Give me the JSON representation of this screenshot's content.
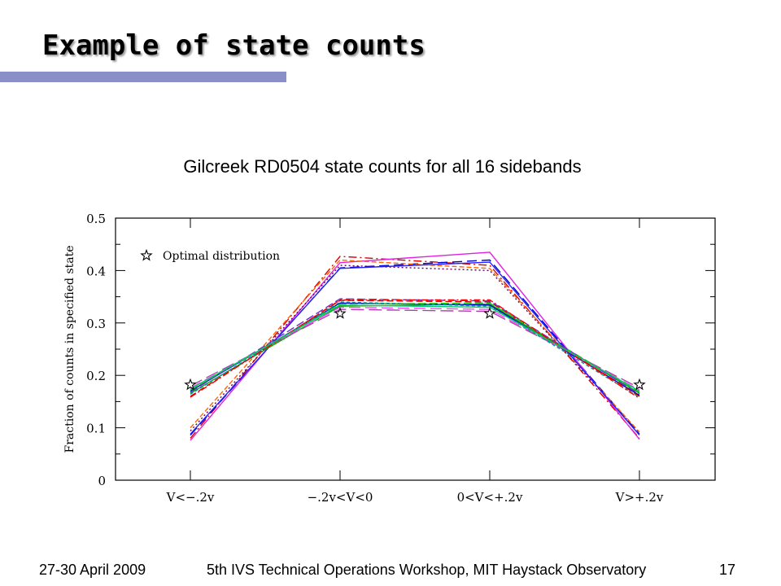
{
  "slide": {
    "title": "Example of state counts",
    "accent_color": "#8b8fc7"
  },
  "footer": {
    "date": "27-30 April 2009",
    "event": "5th IVS Technical Operations Workshop, MIT Haystack Observatory",
    "page_number": "17"
  },
  "chart_data": {
    "type": "line",
    "title": "Gilcreek RD0504 state counts for all 16 sidebands",
    "ylabel": "Fraction of counts in specified state",
    "xlabel": "",
    "categories": [
      "V<−.2v",
      "−.2v<V<0",
      "0<V<+.2v",
      "V>+.2v"
    ],
    "ylim": [
      0,
      0.5
    ],
    "yticks": [
      "0",
      "0.1",
      "0.2",
      "0.3",
      "0.4",
      "0.5"
    ],
    "legend": {
      "label": "Optimal distribution",
      "symbol": "star",
      "placement": "top-left"
    },
    "optimal": [
      0.182,
      0.318,
      0.318,
      0.182
    ],
    "series": [
      {
        "values": [
          0.08,
          0.427,
          0.41,
          0.08
        ],
        "color": "#dd0000",
        "dash": "10 4 2 4"
      },
      {
        "values": [
          0.086,
          0.405,
          0.42,
          0.088
        ],
        "color": "#0000cc",
        "dash": "12 6"
      },
      {
        "values": [
          0.076,
          0.415,
          0.435,
          0.078
        ],
        "color": "#e020e0",
        "dash": ""
      },
      {
        "values": [
          0.094,
          0.41,
          0.4,
          0.09
        ],
        "color": "#660066",
        "dash": "2 3"
      },
      {
        "values": [
          0.1,
          0.42,
          0.404,
          0.092
        ],
        "color": "#ff6600",
        "dash": "6 3"
      },
      {
        "values": [
          0.088,
          0.404,
          0.416,
          0.086
        ],
        "color": "#2222ff",
        "dash": ""
      },
      {
        "values": [
          0.166,
          0.332,
          0.336,
          0.166
        ],
        "color": "#00aa00",
        "dash": ""
      },
      {
        "values": [
          0.17,
          0.338,
          0.334,
          0.162
        ],
        "color": "#0000cc",
        "dash": ""
      },
      {
        "values": [
          0.16,
          0.343,
          0.34,
          0.16
        ],
        "color": "#cc0000",
        "dash": "8 4"
      },
      {
        "values": [
          0.176,
          0.33,
          0.326,
          0.172
        ],
        "color": "#ff44ff",
        "dash": "14 6"
      },
      {
        "values": [
          0.172,
          0.336,
          0.338,
          0.168
        ],
        "color": "#22cc22",
        "dash": "10 4"
      },
      {
        "values": [
          0.168,
          0.346,
          0.342,
          0.164
        ],
        "color": "#6633cc",
        "dash": "10 4"
      },
      {
        "values": [
          0.18,
          0.326,
          0.322,
          0.176
        ],
        "color": "#aa44aa",
        "dash": "16 6"
      },
      {
        "values": [
          0.164,
          0.34,
          0.332,
          0.158
        ],
        "color": "#009999",
        "dash": "4 3"
      },
      {
        "values": [
          0.158,
          0.344,
          0.344,
          0.156
        ],
        "color": "#ff0000",
        "dash": "8 3 2 3"
      },
      {
        "values": [
          0.174,
          0.334,
          0.33,
          0.17
        ],
        "color": "#00cc66",
        "dash": ""
      }
    ]
  }
}
